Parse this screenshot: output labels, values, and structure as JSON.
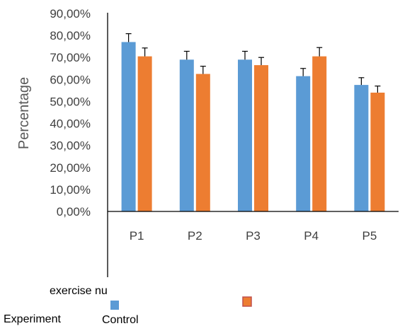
{
  "chart_data": {
    "type": "bar",
    "title": "",
    "xlabel": "exercise nu",
    "ylabel": "Percentage",
    "categories": [
      "P1",
      "P2",
      "P3",
      "P4",
      "P5"
    ],
    "ylim": [
      0,
      0.9
    ],
    "yticks": [
      0,
      0.1,
      0.2,
      0.3,
      0.4,
      0.5,
      0.6,
      0.7,
      0.8,
      0.9
    ],
    "ytick_labels": [
      "0,00%",
      "10,00%",
      "20,00%",
      "30,00%",
      "40,00%",
      "50,00%",
      "60,00%",
      "70,00%",
      "80,00%",
      "90,00%"
    ],
    "grid": false,
    "legend_position": "bottom",
    "series": [
      {
        "name": "Experiment",
        "color": "#5B9BD5",
        "values": [
          0.77,
          0.69,
          0.69,
          0.615,
          0.575
        ],
        "error": [
          0.038,
          0.038,
          0.038,
          0.035,
          0.033
        ]
      },
      {
        "name": "Control",
        "color": "#ED7D31",
        "values": [
          0.705,
          0.625,
          0.665,
          0.705,
          0.54
        ],
        "error": [
          0.038,
          0.035,
          0.035,
          0.04,
          0.03
        ]
      }
    ]
  }
}
